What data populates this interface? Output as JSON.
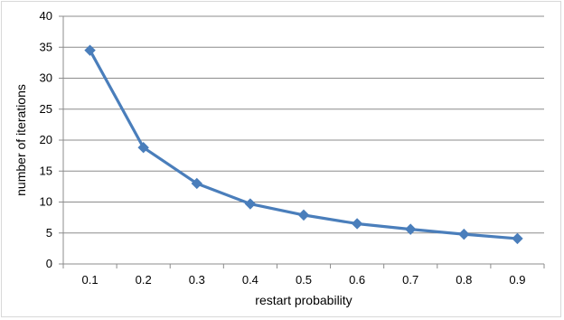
{
  "chart_data": {
    "type": "line",
    "title": "",
    "xlabel": "restart probability",
    "ylabel": "number of iterations",
    "categories": [
      "0.1",
      "0.2",
      "0.3",
      "0.4",
      "0.5",
      "0.6",
      "0.7",
      "0.8",
      "0.9"
    ],
    "series": [
      {
        "values": [
          34.5,
          18.8,
          13.0,
          9.7,
          7.9,
          6.5,
          5.6,
          4.8,
          4.1
        ],
        "color": "#4a7ebb",
        "marker": "diamond"
      }
    ],
    "ylim": [
      0,
      40
    ],
    "yticks": [
      "0",
      "5",
      "10",
      "15",
      "20",
      "25",
      "30",
      "35",
      "40"
    ],
    "grid": true,
    "legend": "none"
  }
}
